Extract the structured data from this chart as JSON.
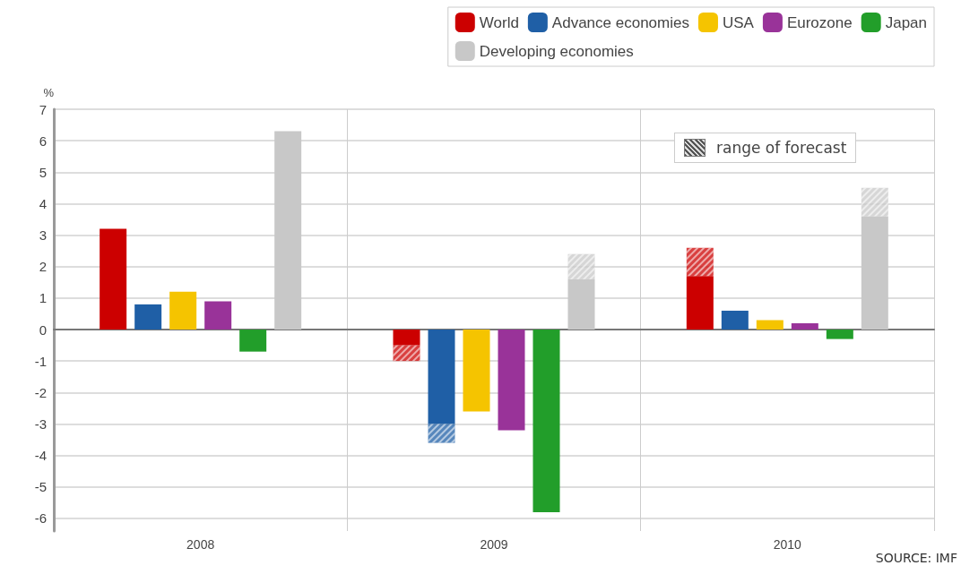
{
  "chart_data": {
    "type": "bar",
    "ylabel": "%",
    "categories": [
      "2008",
      "2009",
      "2010"
    ],
    "series": [
      {
        "name": "World",
        "color": "#cc0000",
        "values": [
          3.2,
          -0.5,
          1.7
        ]
      },
      {
        "name": "Advance economies",
        "color": "#1f5fa6",
        "values": [
          0.8,
          -3.0,
          0.6
        ]
      },
      {
        "name": "USA",
        "color": "#f5c400",
        "values": [
          1.2,
          -2.6,
          0.3
        ]
      },
      {
        "name": "Eurozone",
        "color": "#993399",
        "values": [
          0.9,
          -3.2,
          0.2
        ]
      },
      {
        "name": "Japan",
        "color": "#229e2a",
        "values": [
          -0.7,
          -5.8,
          -0.3
        ]
      },
      {
        "name": "Developing economies",
        "color": "#c8c8c8",
        "values": [
          6.3,
          1.6,
          3.6
        ]
      },
      {
        "color": "#cc0000",
        "base": [
          null,
          -0.5,
          1.7
        ],
        "values": [
          null,
          -0.5,
          0.9
        ]
      },
      {
        "color": "#1f5fa6",
        "base": [
          null,
          -3.0,
          null
        ],
        "values": [
          null,
          -0.6,
          null
        ]
      },
      {
        "color": "#c8c8c8",
        "base": [
          null,
          1.6,
          3.6
        ],
        "values": [
          null,
          0.8,
          0.9
        ]
      }
    ],
    "ylim": [
      -6.4,
      7
    ],
    "yticks": [
      -6,
      -5,
      -4,
      -3,
      -2,
      -1,
      0,
      1,
      2,
      3,
      4,
      5,
      6,
      7
    ],
    "grid": true,
    "legend": "top right",
    "annotations": [
      "range of forecast",
      "SOURCE: IMF"
    ]
  }
}
